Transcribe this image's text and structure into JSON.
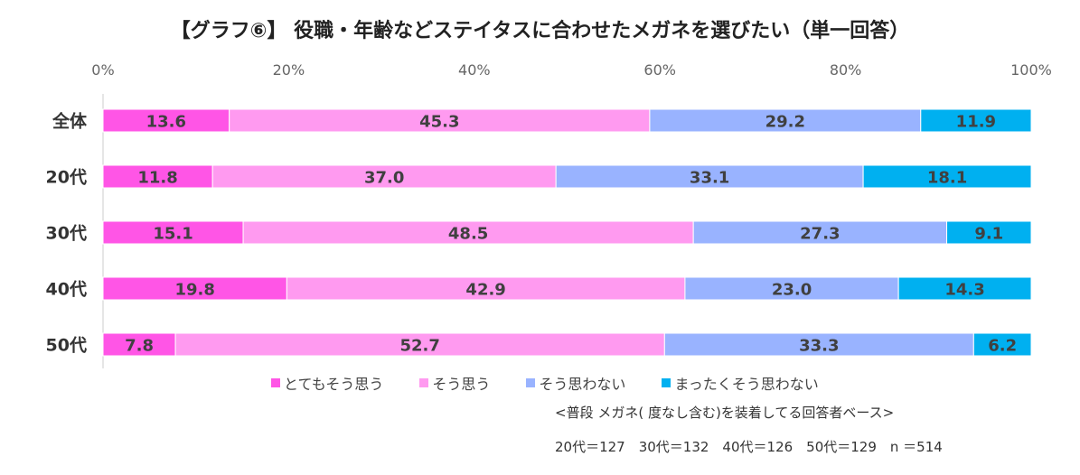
{
  "title": "【グラフ⑥】 役職・年齢などステイタスに合わせたメガネを選びたい（単一回答）",
  "notes": {
    "base": "<普段 メガネ( 度なし含む)を装着してる回答者ベース>",
    "counts": "20代＝127　30代＝132　40代＝126　50代＝129　n ＝514"
  },
  "chart_data": {
    "type": "bar",
    "orientation": "horizontal",
    "stacked": true,
    "stack_mode": "percent",
    "title": "【グラフ⑥】 役職・年齢などステイタスに合わせたメガネを選びたい（単一回答）",
    "categories": [
      "全体",
      "20代",
      "30代",
      "40代",
      "50代"
    ],
    "xlim": [
      0,
      100
    ],
    "xticks": [
      "0%",
      "20%",
      "40%",
      "60%",
      "80%",
      "100%"
    ],
    "grid": false,
    "legend_position": "bottom",
    "series": [
      {
        "name": "とてもそう思う",
        "color": "#ff55e6",
        "values": [
          13.6,
          11.8,
          15.1,
          19.8,
          7.8
        ]
      },
      {
        "name": "そう思う",
        "color": "#ff9af0",
        "values": [
          45.3,
          37.0,
          48.5,
          42.9,
          52.7
        ]
      },
      {
        "name": "そう思わない",
        "color": "#99b3ff",
        "values": [
          29.2,
          33.1,
          27.3,
          23.0,
          33.3
        ]
      },
      {
        "name": "まったくそう思わない",
        "color": "#00b0f0",
        "values": [
          11.9,
          18.1,
          9.1,
          14.3,
          6.2
        ]
      }
    ]
  }
}
